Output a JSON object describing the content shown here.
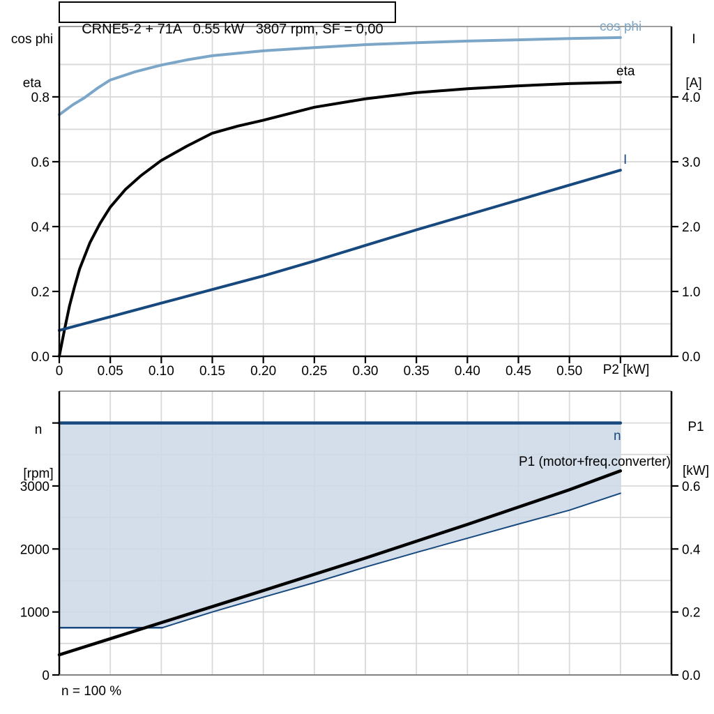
{
  "figure": {
    "title": "CRNE5-2 + 71A   0.55 kW   3807 rpm, SF = 0,00"
  },
  "top_chart": {
    "axis_titles": {
      "left_line1": "cos phi",
      "left_line2": "eta",
      "right_line1": "I",
      "right_line2": "[A]"
    },
    "x_label": "P2 [kW]",
    "curve_labels": {
      "cos_phi": "cos phi",
      "eta": "eta",
      "current": "I"
    }
  },
  "bottom_chart": {
    "axis_titles": {
      "left_line1": "n",
      "left_line2": "[rpm]",
      "right_line1": "P1",
      "right_line2": "[kW]"
    },
    "curve_labels": {
      "n": "n",
      "p1": "P1 (motor+freq.converter)"
    },
    "annotation": "n = 100 %"
  },
  "colors": {
    "light_blue": "#7CA6C8",
    "dark_blue": "#17497E",
    "black": "#000000",
    "grid": "#D9D9D9",
    "gray_border": "#808080",
    "area_fill": "#CCD8E6"
  },
  "chart_data": [
    {
      "type": "line",
      "panel": "top",
      "title": "CRNE5-2 + 71A   0.55 kW   3807 rpm, SF = 0,00",
      "xlabel": "P2 [kW]",
      "xlim": [
        0,
        0.6
      ],
      "x_grid_step": 0.05,
      "left_axis": {
        "title": "cos phi / eta",
        "lim": [
          0,
          1.017
        ],
        "grid_step": 0.1,
        "tick_values": [
          0,
          0.2,
          0.4,
          0.6,
          0.8
        ],
        "tick_labels": [
          "0.0",
          "0.2",
          "0.4",
          "0.6",
          "0.8"
        ]
      },
      "right_axis": {
        "title": "I [A]",
        "lim": [
          0,
          5.086
        ],
        "tick_values": [
          0,
          1,
          2,
          3,
          4
        ],
        "tick_labels": [
          "0.0",
          "1.0",
          "2.0",
          "3.0",
          "4.0"
        ]
      },
      "x_tick_values": [
        0,
        0.05,
        0.1,
        0.15,
        0.2,
        0.25,
        0.3,
        0.35,
        0.4,
        0.45,
        0.5,
        0.55
      ],
      "x_tick_labels": [
        "0",
        "0.05",
        "0.10",
        "0.15",
        "0.20",
        "0.25",
        "0.30",
        "0.35",
        "0.40",
        "0.45",
        "0.50",
        ""
      ],
      "series": [
        {
          "name": "cos phi",
          "axis": "left",
          "color": "#7CA6C8",
          "width": 4,
          "x": [
            0,
            0.013,
            0.025,
            0.038,
            0.05,
            0.075,
            0.1,
            0.125,
            0.15,
            0.2,
            0.25,
            0.3,
            0.35,
            0.4,
            0.45,
            0.5,
            0.55
          ],
          "y": [
            0.745,
            0.775,
            0.798,
            0.828,
            0.852,
            0.878,
            0.898,
            0.914,
            0.927,
            0.942,
            0.952,
            0.961,
            0.967,
            0.972,
            0.976,
            0.98,
            0.983
          ]
        },
        {
          "name": "eta",
          "axis": "left",
          "color": "#000000",
          "width": 4,
          "x": [
            0,
            0.005,
            0.01,
            0.015,
            0.02,
            0.03,
            0.04,
            0.05,
            0.065,
            0.08,
            0.1,
            0.125,
            0.15,
            0.175,
            0.2,
            0.25,
            0.3,
            0.35,
            0.4,
            0.45,
            0.5,
            0.55
          ],
          "y": [
            0,
            0.08,
            0.155,
            0.215,
            0.27,
            0.35,
            0.41,
            0.46,
            0.515,
            0.557,
            0.604,
            0.648,
            0.688,
            0.71,
            0.728,
            0.768,
            0.794,
            0.813,
            0.825,
            0.834,
            0.841,
            0.845
          ]
        },
        {
          "name": "I",
          "axis": "right",
          "color": "#17497E",
          "width": 4,
          "x": [
            0,
            0.05,
            0.1,
            0.15,
            0.2,
            0.25,
            0.3,
            0.35,
            0.4,
            0.45,
            0.5,
            0.55
          ],
          "y": [
            0.4,
            0.61,
            0.82,
            1.03,
            1.24,
            1.47,
            1.71,
            1.95,
            2.18,
            2.41,
            2.64,
            2.87
          ]
        }
      ]
    },
    {
      "type": "line+area",
      "panel": "bottom",
      "xlabel": "",
      "xlim": [
        0,
        0.6
      ],
      "x_grid_step": 0.05,
      "left_axis": {
        "title": "n [rpm]",
        "lim": [
          0,
          4505
        ],
        "grid_step": 500,
        "tick_values": [
          0,
          1000,
          2000,
          3000,
          4000
        ],
        "tick_labels": [
          "0",
          "1000",
          "2000",
          "3000",
          ""
        ]
      },
      "right_axis": {
        "title": "P1 [kW]",
        "lim": [
          0,
          0.901
        ],
        "tick_values": [
          0,
          0.2,
          0.4,
          0.6
        ],
        "tick_labels": [
          "0.0",
          "0.2",
          "0.4",
          "0.6"
        ]
      },
      "x_tick_values": [],
      "x_tick_labels": [],
      "annotation": "n = 100 %",
      "series": [
        {
          "name": "n",
          "axis": "left",
          "color": "#17497E",
          "width": 4.5,
          "x": [
            0,
            0.55
          ],
          "y": [
            4000,
            4000
          ]
        },
        {
          "name": "min-speed",
          "axis": "left",
          "color": "#17497E",
          "width": 2.5,
          "x": [
            0,
            0.101
          ],
          "y": [
            750,
            750
          ]
        },
        {
          "name": "speed-lower-boundary",
          "axis": "left",
          "color": "#17497E",
          "width": 2,
          "x": [
            0.101,
            0.15,
            0.2,
            0.25,
            0.3,
            0.35,
            0.4,
            0.45,
            0.5,
            0.55
          ],
          "y": [
            750,
            1000,
            1235,
            1465,
            1712,
            1945,
            2170,
            2395,
            2616,
            2884
          ]
        },
        {
          "name": "P1 (motor+freq.converter)",
          "axis": "right",
          "color": "#000000",
          "width": 4.5,
          "x": [
            0,
            0.1,
            0.2,
            0.3,
            0.4,
            0.5,
            0.55
          ],
          "y": [
            0.064,
            0.166,
            0.268,
            0.371,
            0.478,
            0.588,
            0.648
          ]
        }
      ],
      "area": {
        "color": "#CCD8E6",
        "opacity": 0.85,
        "top_series": "n",
        "bottom_series": [
          "min-speed",
          "speed-lower-boundary"
        ]
      }
    }
  ]
}
